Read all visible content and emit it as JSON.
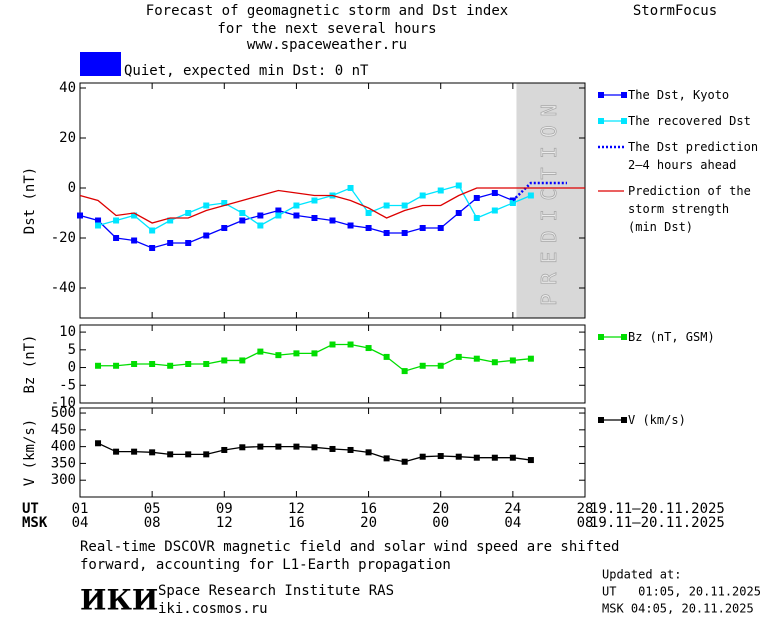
{
  "header": {
    "title_lines": [
      "Forecast of geomagnetic storm and Dst index",
      "for the next several hours",
      "www.spaceweather.ru"
    ],
    "brand": "StormFocus"
  },
  "status": {
    "color": "#0000ff",
    "text": "Quiet, expected min Dst: 0 nT"
  },
  "chart_data": [
    {
      "type": "line",
      "ylabel": "Dst (nT)",
      "xlim": [
        0,
        28
      ],
      "ylim": [
        -52,
        42
      ],
      "yticks": [
        40,
        20,
        0,
        -20,
        -40
      ],
      "prediction_from": 24.2,
      "prediction_label": "PREDICTION",
      "legend": "right-outside",
      "series": [
        {
          "name": "The Dst, Kyoto",
          "color": "#0000ff",
          "marker": "square",
          "x": [
            0,
            1,
            2,
            3,
            4,
            5,
            6,
            7,
            8,
            9,
            10,
            11,
            12,
            13,
            14,
            15,
            16,
            17,
            18,
            19,
            20,
            21,
            22,
            23,
            24
          ],
          "values": [
            -11,
            -13,
            -20,
            -21,
            -24,
            -22,
            -22,
            -19,
            -16,
            -13,
            -11,
            -9,
            -11,
            -12,
            -13,
            -15,
            -16,
            -18,
            -18,
            -16,
            -16,
            -10,
            -4,
            -2,
            -5
          ]
        },
        {
          "name": "The recovered Dst",
          "color": "#00e5ff",
          "marker": "square",
          "x": [
            1,
            2,
            3,
            4,
            5,
            6,
            7,
            8,
            9,
            10,
            11,
            12,
            13,
            14,
            15,
            16,
            17,
            18,
            19,
            20,
            21,
            22,
            23,
            24,
            25
          ],
          "values": [
            -15,
            -13,
            -11,
            -17,
            -13,
            -10,
            -7,
            -6,
            -10,
            -15,
            -11,
            -7,
            -5,
            -3,
            0,
            -10,
            -7,
            -7,
            -3,
            -1,
            1,
            -12,
            -9,
            -6,
            -3
          ]
        },
        {
          "name": "The Dst prediction\n2–4 hours ahead",
          "color": "#0000ff",
          "dash": true,
          "x": [
            24,
            25,
            27
          ],
          "values": [
            -5,
            2,
            2
          ]
        },
        {
          "name": "Prediction of the\nstorm strength\n(min Dst)",
          "color": "#dd0000",
          "x": [
            0,
            1,
            2,
            3,
            4,
            5,
            6,
            7,
            8,
            9,
            10,
            11,
            12,
            13,
            14,
            15,
            16,
            17,
            18,
            19,
            20,
            21,
            22,
            23,
            24,
            28
          ],
          "values": [
            -3,
            -5,
            -11,
            -10,
            -14,
            -12,
            -12,
            -9,
            -7,
            -5,
            -3,
            -1,
            -2,
            -3,
            -3,
            -5,
            -8,
            -12,
            -9,
            -7,
            -7,
            -3,
            0,
            0,
            0,
            0
          ]
        }
      ]
    },
    {
      "type": "line",
      "ylabel": "Bz (nT)",
      "xlim": [
        0,
        28
      ],
      "ylim": [
        -10,
        12
      ],
      "yticks": [
        10,
        5,
        0,
        -5,
        -10
      ],
      "legend": "right-outside",
      "series": [
        {
          "name": "Bz (nT, GSM)",
          "color": "#00dd00",
          "marker": "square",
          "x": [
            1,
            2,
            3,
            4,
            5,
            6,
            7,
            8,
            9,
            10,
            11,
            12,
            13,
            14,
            15,
            16,
            17,
            18,
            19,
            20,
            21,
            22,
            23,
            24,
            25
          ],
          "values": [
            0.5,
            0.5,
            1,
            1,
            0.5,
            1,
            1,
            2,
            2,
            4.5,
            3.5,
            4,
            4,
            6.5,
            6.5,
            5.5,
            3,
            -1,
            0.5,
            0.5,
            3,
            2.5,
            1.5,
            2,
            2.5
          ]
        }
      ]
    },
    {
      "type": "line",
      "ylabel": "V (km/s)",
      "xlim": [
        0,
        28
      ],
      "ylim": [
        250,
        515
      ],
      "yticks": [
        500,
        450,
        400,
        350,
        300
      ],
      "legend": "right-outside",
      "xticks": [
        {
          "value": 0,
          "label": "01"
        },
        {
          "value": 4,
          "label": "05"
        },
        {
          "value": 8,
          "label": "09"
        },
        12,
        16,
        20,
        24,
        28
      ],
      "xticks_msk": [
        "04",
        "08",
        "12",
        "16",
        "20",
        "00",
        "04",
        "08"
      ],
      "x_row_labels": [
        "UT",
        "MSK"
      ],
      "ut_range": "19.11–20.11.2025",
      "msk_range": "19.11–20.11.2025",
      "series": [
        {
          "name": "V (km/s)",
          "color": "#000000",
          "marker": "square",
          "x": [
            1,
            2,
            3,
            4,
            5,
            6,
            7,
            8,
            9,
            10,
            11,
            12,
            13,
            14,
            15,
            16,
            17,
            18,
            19,
            20,
            21,
            22,
            23,
            24,
            25
          ],
          "values": [
            410,
            385,
            385,
            383,
            377,
            377,
            377,
            390,
            398,
            400,
            400,
            400,
            398,
            393,
            390,
            383,
            365,
            355,
            370,
            372,
            370,
            367,
            367,
            367,
            360
          ]
        }
      ]
    }
  ],
  "footer": {
    "note_lines": [
      "Real-time DSCOVR magnetic field and solar wind speed are shifted",
      "forward, accounting for L1-Earth propagation"
    ],
    "logo": "ИКИ",
    "institute": "Space Research Institute RAS",
    "site": "iki.cosmos.ru",
    "updated_lines": [
      "Updated at:",
      "UT   01:05, 20.11.2025",
      "MSK 04:05, 20.11.2025"
    ]
  }
}
